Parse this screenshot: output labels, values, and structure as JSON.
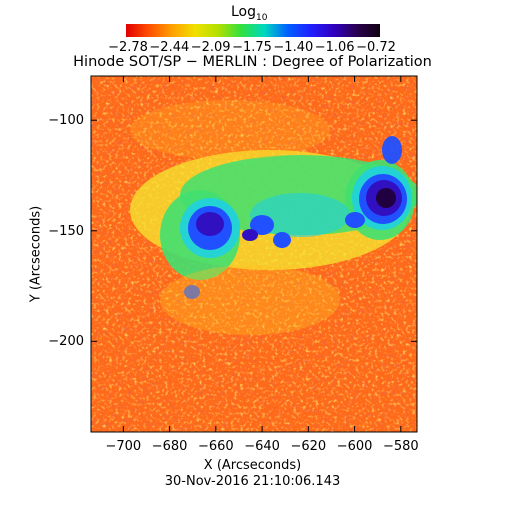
{
  "colorbar": {
    "label": "Log",
    "label_subscript": "10",
    "ticks": [
      "−2.78",
      "−2.44",
      "−2.09",
      "−1.75",
      "−1.40",
      "−1.06",
      "−0.72"
    ],
    "colors": [
      "#e00000",
      "#ff5000",
      "#ffa000",
      "#f0e000",
      "#b0e000",
      "#30e040",
      "#00d8c0",
      "#0060ff",
      "#2020ff",
      "#3000c0",
      "#2a0050",
      "#100010"
    ]
  },
  "plot": {
    "title": "Hinode SOT/SP − MERLIN : Degree of Polarization",
    "xlabel": "X (Arcseconds)",
    "ylabel": "Y (Arcseconds)",
    "x_ticks": [
      -700,
      -680,
      -660,
      -640,
      -620,
      -600,
      -580
    ],
    "y_ticks": [
      -100,
      -150,
      -200
    ],
    "xlim": [
      -714,
      -573
    ],
    "ylim": [
      -241,
      -80
    ],
    "timestamp": "30-Nov-2016 21:10:06.143"
  },
  "map_colors": {
    "background": "#ff6a1a",
    "low": "#e8300c",
    "warm": "#ffc020",
    "yellow": "#f4ea30",
    "green": "#40e070",
    "cyan": "#20d0e0",
    "blue": "#2050ff",
    "indigo": "#3010c0",
    "dark": "#200040"
  }
}
